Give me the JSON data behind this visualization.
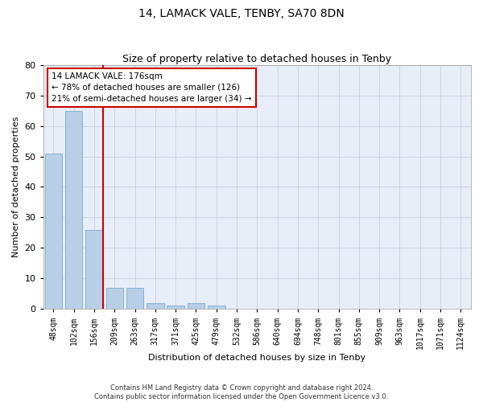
{
  "title": "14, LAMACK VALE, TENBY, SA70 8DN",
  "subtitle": "Size of property relative to detached houses in Tenby",
  "xlabel": "Distribution of detached houses by size in Tenby",
  "ylabel": "Number of detached properties",
  "footer_line1": "Contains HM Land Registry data © Crown copyright and database right 2024.",
  "footer_line2": "Contains public sector information licensed under the Open Government Licence v3.0.",
  "categories": [
    "48sqm",
    "102sqm",
    "156sqm",
    "209sqm",
    "263sqm",
    "317sqm",
    "371sqm",
    "425sqm",
    "479sqm",
    "532sqm",
    "586sqm",
    "640sqm",
    "694sqm",
    "748sqm",
    "801sqm",
    "855sqm",
    "909sqm",
    "963sqm",
    "1017sqm",
    "1071sqm",
    "1124sqm"
  ],
  "values": [
    51,
    65,
    26,
    7,
    7,
    2,
    1,
    2,
    1,
    0,
    0,
    0,
    0,
    0,
    0,
    0,
    0,
    0,
    0,
    0,
    0
  ],
  "bar_color": "#b8cfe8",
  "bar_edge_color": "#7aaad0",
  "property_line_color": "#cc0000",
  "annotation_text": "14 LAMACK VALE: 176sqm\n← 78% of detached houses are smaller (126)\n21% of semi-detached houses are larger (34) →",
  "annotation_box_color": "#cc0000",
  "ylim": [
    0,
    80
  ],
  "yticks": [
    0,
    10,
    20,
    30,
    40,
    50,
    60,
    70,
    80
  ],
  "grid_color": "#c8d0dc",
  "background_color": "#e8eef8",
  "fig_background": "#ffffff",
  "title_fontsize": 10,
  "subtitle_fontsize": 9,
  "ylabel_fontsize": 8,
  "xlabel_fontsize": 8,
  "tick_fontsize": 7,
  "footer_fontsize": 6,
  "bar_width": 0.85,
  "prop_line_bar_index": 2
}
